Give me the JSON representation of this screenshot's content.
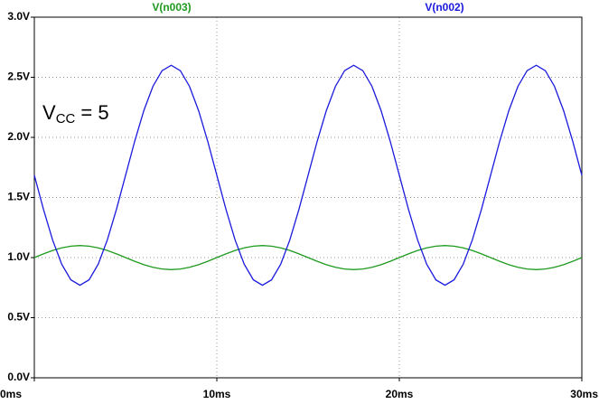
{
  "chart_data": {
    "type": "line",
    "annotation": {
      "base": "V",
      "subscript": "CC",
      "text": "= 5"
    },
    "x": [
      0,
      0.5,
      1,
      1.5,
      2,
      2.5,
      3,
      3.5,
      4,
      4.5,
      5,
      5.5,
      6,
      6.5,
      7,
      7.5,
      8,
      8.5,
      9,
      9.5,
      10,
      10.5,
      11,
      11.5,
      12,
      12.5,
      13,
      13.5,
      14,
      14.5,
      15,
      15.5,
      16,
      16.5,
      17,
      17.5,
      18,
      18.5,
      19,
      19.5,
      20,
      20.5,
      21,
      21.5,
      22,
      22.5,
      23,
      23.5,
      24,
      24.5,
      25,
      25.5,
      26,
      26.5,
      27,
      27.5,
      28,
      28.5,
      29,
      29.5,
      30
    ],
    "series": [
      {
        "name": "V(n003)",
        "color": "#1f9a1f",
        "values": [
          1,
          1.031,
          1.059,
          1.081,
          1.095,
          1.1,
          1.095,
          1.081,
          1.059,
          1.031,
          1,
          0.969,
          0.941,
          0.919,
          0.905,
          0.9,
          0.905,
          0.919,
          0.941,
          0.969,
          1,
          1.031,
          1.059,
          1.081,
          1.095,
          1.1,
          1.095,
          1.081,
          1.059,
          1.031,
          1,
          0.969,
          0.941,
          0.919,
          0.905,
          0.9,
          0.905,
          0.919,
          0.941,
          0.969,
          1,
          1.031,
          1.059,
          1.081,
          1.095,
          1.1,
          1.095,
          1.081,
          1.059,
          1.031,
          1,
          0.969,
          0.941,
          0.919,
          0.905,
          0.9,
          0.905,
          0.919,
          0.941,
          0.969,
          1
        ]
      },
      {
        "name": "V(n002)",
        "color": "#1a1adc",
        "values": [
          1.685,
          1.402,
          1.147,
          0.945,
          0.815,
          0.77,
          0.815,
          0.945,
          1.147,
          1.402,
          1.685,
          1.968,
          2.223,
          2.425,
          2.555,
          2.6,
          2.555,
          2.425,
          2.223,
          1.968,
          1.685,
          1.402,
          1.147,
          0.945,
          0.815,
          0.77,
          0.815,
          0.945,
          1.147,
          1.402,
          1.685,
          1.968,
          2.223,
          2.425,
          2.555,
          2.6,
          2.555,
          2.425,
          2.223,
          1.968,
          1.685,
          1.402,
          1.147,
          0.945,
          0.815,
          0.77,
          0.815,
          0.945,
          1.147,
          1.402,
          1.685,
          1.968,
          2.223,
          2.425,
          2.555,
          2.6,
          2.555,
          2.425,
          2.223,
          1.968,
          1.685
        ]
      }
    ],
    "xlim": [
      0,
      30
    ],
    "xticks": [
      {
        "value": 0,
        "label": "0ms"
      },
      {
        "value": 10,
        "label": "10ms"
      },
      {
        "value": 20,
        "label": "20ms"
      },
      {
        "value": 30,
        "label": "30ms"
      }
    ],
    "ylim": [
      0,
      3
    ],
    "yticks": [
      {
        "value": 0,
        "label": "0.0V"
      },
      {
        "value": 0.5,
        "label": "0.5V"
      },
      {
        "value": 1,
        "label": "1.0V"
      },
      {
        "value": 1.5,
        "label": "1.5V"
      },
      {
        "value": 2,
        "label": "2.0V"
      },
      {
        "value": 2.5,
        "label": "2.5V"
      },
      {
        "value": 3,
        "label": "3.0V"
      }
    ],
    "grid": true
  }
}
